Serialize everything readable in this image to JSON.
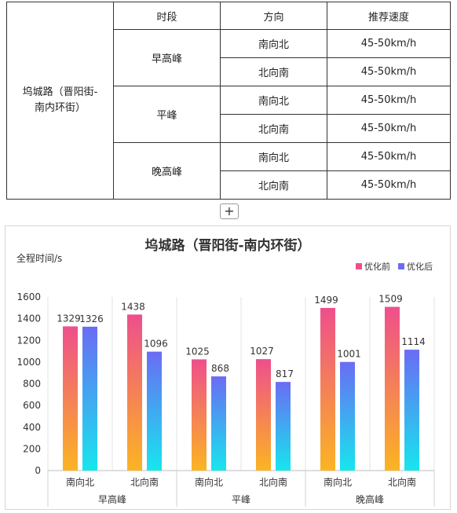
{
  "table": {
    "headers": [
      "时段",
      "方向",
      "推荐速度"
    ],
    "road": "坞城路（晋阳街-南内环街）",
    "road_line1": "坞城路（晋阳街-",
    "road_line2": "南内环街）",
    "groups": [
      {
        "period": "早高峰",
        "rows": [
          {
            "direction": "南向北",
            "speed": "45-50km/h"
          },
          {
            "direction": "北向南",
            "speed": "45-50km/h"
          }
        ]
      },
      {
        "period": "平峰",
        "rows": [
          {
            "direction": "南向北",
            "speed": "45-50km/h"
          },
          {
            "direction": "北向南",
            "speed": "45-50km/h"
          }
        ]
      },
      {
        "period": "晚高峰",
        "rows": [
          {
            "direction": "南向北",
            "speed": "45-50km/h"
          },
          {
            "direction": "北向南",
            "speed": "45-50km/h"
          }
        ]
      }
    ]
  },
  "expand_button": "+",
  "colors": {
    "before_top": "#ee4f8c",
    "before_bottom": "#fbb423",
    "after_top": "#6a6cf4",
    "after_bottom": "#17e6ee",
    "grid": "#e3e3e3",
    "axis_text": "#333333"
  },
  "chart_data": {
    "type": "bar",
    "title": "坞城路（晋阳街-南内环街）",
    "ylabel": "全程时间/s",
    "ylim": [
      0,
      1600
    ],
    "yticks": [
      0,
      200,
      400,
      600,
      800,
      1000,
      1200,
      1400,
      1600
    ],
    "groups": [
      {
        "name": "早高峰",
        "categories": [
          "南向北",
          "北向南"
        ]
      },
      {
        "name": "平峰",
        "categories": [
          "南向北",
          "北向南"
        ]
      },
      {
        "name": "晚高峰",
        "categories": [
          "南向北",
          "北向南"
        ]
      }
    ],
    "categories": [
      "南向北",
      "北向南",
      "南向北",
      "北向南",
      "南向北",
      "北向南"
    ],
    "series": [
      {
        "name": "优化前",
        "values": [
          1329,
          1438,
          1025,
          1027,
          1499,
          1509
        ]
      },
      {
        "name": "优化后",
        "values": [
          1326,
          1096,
          868,
          817,
          1001,
          1114
        ]
      }
    ],
    "legend_position": "top-right",
    "grid": "vertical"
  }
}
